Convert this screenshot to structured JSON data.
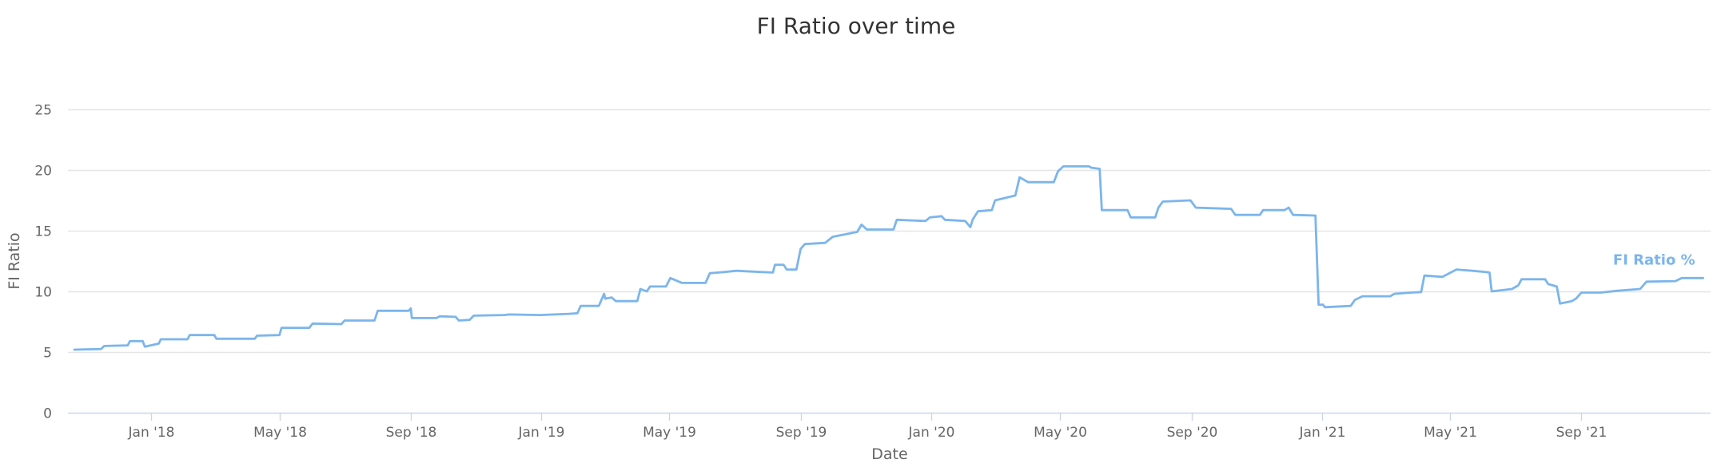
{
  "chart_data": {
    "type": "line",
    "title": "FI Ratio over time",
    "xlabel": "Date",
    "ylabel": "FI Ratio",
    "ylim": [
      0,
      25
    ],
    "yticks": [
      0,
      5,
      10,
      15,
      20,
      25
    ],
    "xlim": [
      "2017-10-15",
      "2021-12-31"
    ],
    "xticks": [
      {
        "label": "Jan '18",
        "date": "2018-01-01"
      },
      {
        "label": "May '18",
        "date": "2018-05-01"
      },
      {
        "label": "Sep '18",
        "date": "2018-09-01"
      },
      {
        "label": "Jan '19",
        "date": "2019-01-01"
      },
      {
        "label": "May '19",
        "date": "2019-05-01"
      },
      {
        "label": "Sep '19",
        "date": "2019-09-01"
      },
      {
        "label": "Jan '20",
        "date": "2020-01-01"
      },
      {
        "label": "May '20",
        "date": "2020-05-01"
      },
      {
        "label": "Sep '20",
        "date": "2020-09-01"
      },
      {
        "label": "Jan '21",
        "date": "2021-01-01"
      },
      {
        "label": "May '21",
        "date": "2021-05-01"
      },
      {
        "label": "Sep '21",
        "date": "2021-09-01"
      }
    ],
    "grid": true,
    "legend": "none",
    "color": "#7cb5ec",
    "series": [
      {
        "name": "FI Ratio %",
        "points": [
          [
            "2017-10-21",
            5.2
          ],
          [
            "2017-11-15",
            5.25
          ],
          [
            "2017-11-18",
            5.5
          ],
          [
            "2017-12-10",
            5.55
          ],
          [
            "2017-12-12",
            5.9
          ],
          [
            "2017-12-24",
            5.9
          ],
          [
            "2017-12-26",
            5.45
          ],
          [
            "2018-01-08",
            5.7
          ],
          [
            "2018-01-10",
            6.05
          ],
          [
            "2018-02-04",
            6.05
          ],
          [
            "2018-02-06",
            6.4
          ],
          [
            "2018-03-01",
            6.4
          ],
          [
            "2018-03-03",
            6.1
          ],
          [
            "2018-04-08",
            6.1
          ],
          [
            "2018-04-10",
            6.35
          ],
          [
            "2018-05-01",
            6.4
          ],
          [
            "2018-05-03",
            7.0
          ],
          [
            "2018-05-29",
            7.0
          ],
          [
            "2018-06-01",
            7.35
          ],
          [
            "2018-06-28",
            7.3
          ],
          [
            "2018-07-01",
            7.6
          ],
          [
            "2018-07-29",
            7.6
          ],
          [
            "2018-08-01",
            8.4
          ],
          [
            "2018-08-30",
            8.4
          ],
          [
            "2018-09-01",
            8.6
          ],
          [
            "2018-09-02",
            7.8
          ],
          [
            "2018-09-25",
            7.8
          ],
          [
            "2018-09-28",
            7.95
          ],
          [
            "2018-10-13",
            7.9
          ],
          [
            "2018-10-16",
            7.6
          ],
          [
            "2018-10-26",
            7.65
          ],
          [
            "2018-10-30",
            8.0
          ],
          [
            "2018-11-28",
            8.05
          ],
          [
            "2018-12-02",
            8.1
          ],
          [
            "2018-12-31",
            8.05
          ],
          [
            "2019-01-27",
            8.15
          ],
          [
            "2019-02-04",
            8.2
          ],
          [
            "2019-02-07",
            8.8
          ],
          [
            "2019-02-24",
            8.8
          ],
          [
            "2019-03-01",
            9.8
          ],
          [
            "2019-03-02",
            9.4
          ],
          [
            "2019-03-08",
            9.5
          ],
          [
            "2019-03-12",
            9.2
          ],
          [
            "2019-04-01",
            9.2
          ],
          [
            "2019-04-04",
            10.2
          ],
          [
            "2019-04-10",
            10.0
          ],
          [
            "2019-04-13",
            10.4
          ],
          [
            "2019-04-28",
            10.4
          ],
          [
            "2019-05-02",
            11.1
          ],
          [
            "2019-05-13",
            10.7
          ],
          [
            "2019-06-04",
            10.7
          ],
          [
            "2019-06-08",
            11.5
          ],
          [
            "2019-06-22",
            11.6
          ],
          [
            "2019-07-03",
            11.7
          ],
          [
            "2019-07-25",
            11.6
          ],
          [
            "2019-08-06",
            11.55
          ],
          [
            "2019-08-08",
            12.2
          ],
          [
            "2019-08-16",
            12.2
          ],
          [
            "2019-08-19",
            11.8
          ],
          [
            "2019-08-28",
            11.8
          ],
          [
            "2019-09-01",
            13.5
          ],
          [
            "2019-09-05",
            13.9
          ],
          [
            "2019-09-24",
            14.0
          ],
          [
            "2019-10-01",
            14.5
          ],
          [
            "2019-10-24",
            14.9
          ],
          [
            "2019-10-28",
            15.5
          ],
          [
            "2019-11-02",
            15.1
          ],
          [
            "2019-11-27",
            15.1
          ],
          [
            "2019-11-30",
            15.9
          ],
          [
            "2019-12-27",
            15.8
          ],
          [
            "2019-12-31",
            16.1
          ],
          [
            "2020-01-11",
            16.2
          ],
          [
            "2020-01-14",
            15.9
          ],
          [
            "2020-02-02",
            15.8
          ],
          [
            "2020-02-07",
            15.3
          ],
          [
            "2020-02-09",
            15.9
          ],
          [
            "2020-02-14",
            16.6
          ],
          [
            "2020-02-27",
            16.7
          ],
          [
            "2020-03-01",
            17.5
          ],
          [
            "2020-03-20",
            17.9
          ],
          [
            "2020-03-24",
            19.4
          ],
          [
            "2020-04-01",
            19.0
          ],
          [
            "2020-04-25",
            19.0
          ],
          [
            "2020-04-29",
            19.9
          ],
          [
            "2020-05-04",
            20.3
          ],
          [
            "2020-05-28",
            20.3
          ],
          [
            "2020-05-30",
            20.2
          ],
          [
            "2020-06-07",
            20.1
          ],
          [
            "2020-06-09",
            16.7
          ],
          [
            "2020-07-03",
            16.7
          ],
          [
            "2020-07-06",
            16.1
          ],
          [
            "2020-07-29",
            16.1
          ],
          [
            "2020-08-01",
            16.9
          ],
          [
            "2020-08-05",
            17.4
          ],
          [
            "2020-08-31",
            17.5
          ],
          [
            "2020-09-05",
            16.9
          ],
          [
            "2020-10-08",
            16.8
          ],
          [
            "2020-10-12",
            16.3
          ],
          [
            "2020-11-04",
            16.3
          ],
          [
            "2020-11-07",
            16.7
          ],
          [
            "2020-11-27",
            16.7
          ],
          [
            "2020-12-01",
            16.9
          ],
          [
            "2020-12-05",
            16.3
          ],
          [
            "2020-12-26",
            16.25
          ],
          [
            "2020-12-29",
            8.9
          ],
          [
            "2021-01-02",
            8.9
          ],
          [
            "2021-01-04",
            8.7
          ],
          [
            "2021-01-28",
            8.8
          ],
          [
            "2021-02-01",
            9.3
          ],
          [
            "2021-02-08",
            9.6
          ],
          [
            "2021-03-06",
            9.6
          ],
          [
            "2021-03-10",
            9.8
          ],
          [
            "2021-03-26",
            9.9
          ],
          [
            "2021-04-04",
            9.95
          ],
          [
            "2021-04-07",
            11.3
          ],
          [
            "2021-04-24",
            11.2
          ],
          [
            "2021-05-07",
            11.8
          ],
          [
            "2021-05-22",
            11.7
          ],
          [
            "2021-06-03",
            11.6
          ],
          [
            "2021-06-07",
            11.55
          ],
          [
            "2021-06-09",
            10.0
          ],
          [
            "2021-06-28",
            10.2
          ],
          [
            "2021-07-04",
            10.5
          ],
          [
            "2021-07-07",
            11.0
          ],
          [
            "2021-07-29",
            11.0
          ],
          [
            "2021-08-01",
            10.6
          ],
          [
            "2021-08-09",
            10.4
          ],
          [
            "2021-08-12",
            9.0
          ],
          [
            "2021-08-23",
            9.2
          ],
          [
            "2021-08-27",
            9.4
          ],
          [
            "2021-09-01",
            9.9
          ],
          [
            "2021-09-19",
            9.9
          ],
          [
            "2021-10-05",
            10.05
          ],
          [
            "2021-10-26",
            10.2
          ],
          [
            "2021-11-01",
            10.8
          ],
          [
            "2021-11-28",
            10.85
          ],
          [
            "2021-12-04",
            11.1
          ],
          [
            "2021-12-24",
            11.1
          ]
        ]
      }
    ]
  }
}
